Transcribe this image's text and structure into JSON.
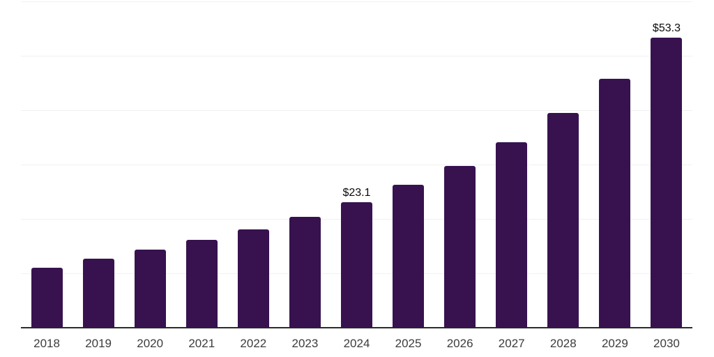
{
  "chart": {
    "colors": {
      "bar": "#37124F",
      "gridline": "#F1F1F1",
      "axis": "#2B2B2B",
      "tick_label": "#3C3C3C",
      "data_label": "#0A0A0A",
      "background": "#FFFFFF"
    }
  },
  "chart_data": {
    "type": "bar",
    "title": "",
    "subtitle": "",
    "xlabel": "",
    "ylabel": "",
    "categories": [
      "2018",
      "2019",
      "2020",
      "2021",
      "2022",
      "2023",
      "2024",
      "2025",
      "2026",
      "2027",
      "2028",
      "2029",
      "2030"
    ],
    "values": [
      11.0,
      12.7,
      14.3,
      16.2,
      18.1,
      20.4,
      23.1,
      26.3,
      29.8,
      34.1,
      39.5,
      45.8,
      53.3
    ],
    "data_labels": [
      {
        "category": "2024",
        "text": "$23.1"
      },
      {
        "category": "2030",
        "text": "$53.3"
      }
    ],
    "value_prefix": "$",
    "ylim": [
      0,
      60
    ],
    "gridline_values": [
      10,
      20,
      30,
      40,
      50,
      60
    ],
    "grid": true,
    "legend": false,
    "y_axis_labels_visible": false
  }
}
